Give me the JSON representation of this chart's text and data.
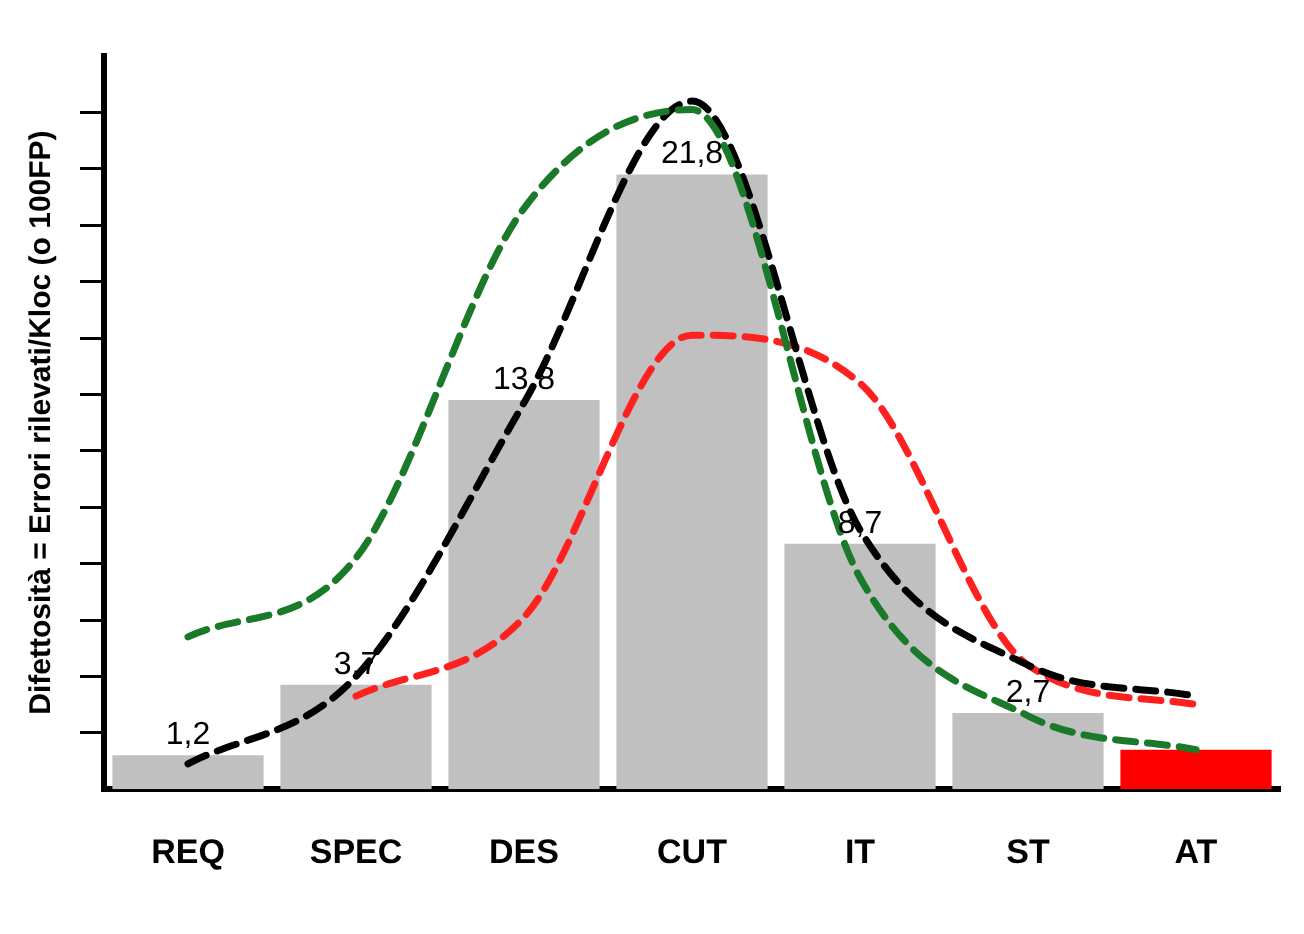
{
  "chart_data": {
    "type": "bar",
    "ylabel": "Difettosità = Errori rilevati/Kloc (o 100FP)",
    "categories": [
      "REQ",
      "SPEC",
      "DES",
      "CUT",
      "IT",
      "ST",
      "AT"
    ],
    "series": [
      {
        "colors": [
          "#c0c0c0",
          "#c0c0c0",
          "#c0c0c0",
          "#c0c0c0",
          "#c0c0c0",
          "#c0c0c0",
          "#ff0000"
        ],
        "values": [
          1.2,
          3.7,
          13.8,
          21.8,
          8.7,
          2.7,
          1.4
        ],
        "value_labels": [
          "1,2",
          "3,7",
          "13,8",
          "21,8",
          "8,7",
          "2,7",
          null
        ]
      },
      {
        "type": "line",
        "color": "#1a7a2a",
        "values": [
          5.4,
          8.2,
          20.6,
          24.1,
          7.5,
          2.6,
          1.4
        ]
      },
      {
        "type": "line",
        "color": "#000000",
        "values": [
          0.9,
          4.0,
          13.7,
          24.4,
          9.2,
          4.4,
          3.3
        ]
      },
      {
        "type": "line",
        "color": "#ff2020",
        "values": [
          null,
          3.3,
          6.1,
          16.1,
          14.4,
          4.4,
          3.0
        ]
      }
    ],
    "ylim": [
      0,
      26
    ],
    "yticks": [
      {
        "value": 2,
        "label": null
      },
      {
        "value": 4,
        "label": null
      },
      {
        "value": 6,
        "label": null
      },
      {
        "value": 8,
        "label": null
      },
      {
        "value": 10,
        "label": null
      },
      {
        "value": 12,
        "label": null
      },
      {
        "value": 14,
        "label": null
      },
      {
        "value": 16,
        "label": null
      },
      {
        "value": 18,
        "label": null
      },
      {
        "value": 20,
        "label": null
      },
      {
        "value": 22,
        "label": null
      },
      {
        "value": 24,
        "label": null
      }
    ],
    "grid": false,
    "legend": false,
    "marker": "none",
    "line_style": "dashed"
  }
}
